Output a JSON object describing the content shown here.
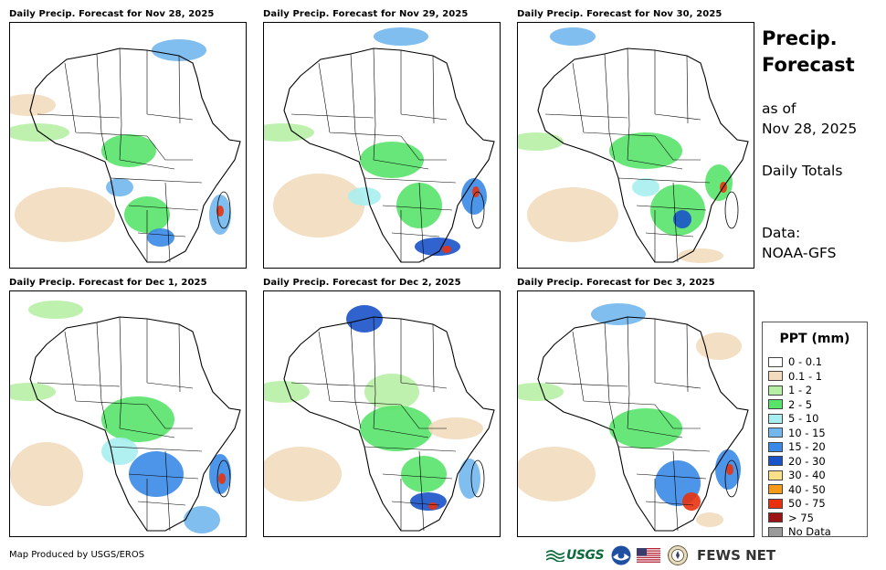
{
  "panels": [
    {
      "title": "Daily Precip. Forecast for Nov 28, 2025"
    },
    {
      "title": "Daily Precip. Forecast for Nov 29, 2025"
    },
    {
      "title": "Daily Precip. Forecast for Nov 30, 2025"
    },
    {
      "title": "Daily Precip. Forecast for Dec 1, 2025"
    },
    {
      "title": "Daily Precip. Forecast for Dec 2, 2025"
    },
    {
      "title": "Daily Precip. Forecast for Dec 3, 2025"
    }
  ],
  "side": {
    "title_line1": "Precip.",
    "title_line2": "Forecast",
    "asof_line1": "as of",
    "asof_line2": "Nov 28, 2025",
    "totals": "Daily Totals",
    "data_line1": "Data:",
    "data_line2": "NOAA-GFS"
  },
  "legend": {
    "title": "PPT (mm)",
    "items": [
      {
        "label": "0 - 0.1",
        "color": "#ffffff"
      },
      {
        "label": "0.1 - 1",
        "color": "#f2dcbd"
      },
      {
        "label": "1 - 2",
        "color": "#b7f0a5"
      },
      {
        "label": "2 - 5",
        "color": "#59e36a"
      },
      {
        "label": "5 - 10",
        "color": "#a8eef0"
      },
      {
        "label": "10 - 15",
        "color": "#72b7ee"
      },
      {
        "label": "15 - 20",
        "color": "#3a89e6"
      },
      {
        "label": "20 - 30",
        "color": "#1a52c8"
      },
      {
        "label": "30 - 40",
        "color": "#fbe08a"
      },
      {
        "label": "40 - 50",
        "color": "#f59a1a"
      },
      {
        "label": "50 - 75",
        "color": "#e8320f"
      },
      {
        "label": "> 75",
        "color": "#9a1414"
      },
      {
        "label": "No Data",
        "color": "#9a9a9a"
      }
    ]
  },
  "footer": {
    "credit": "Map Produced by USGS/EROS",
    "usgs_logo": "USGS",
    "fews_logo": "FEWS NET"
  }
}
